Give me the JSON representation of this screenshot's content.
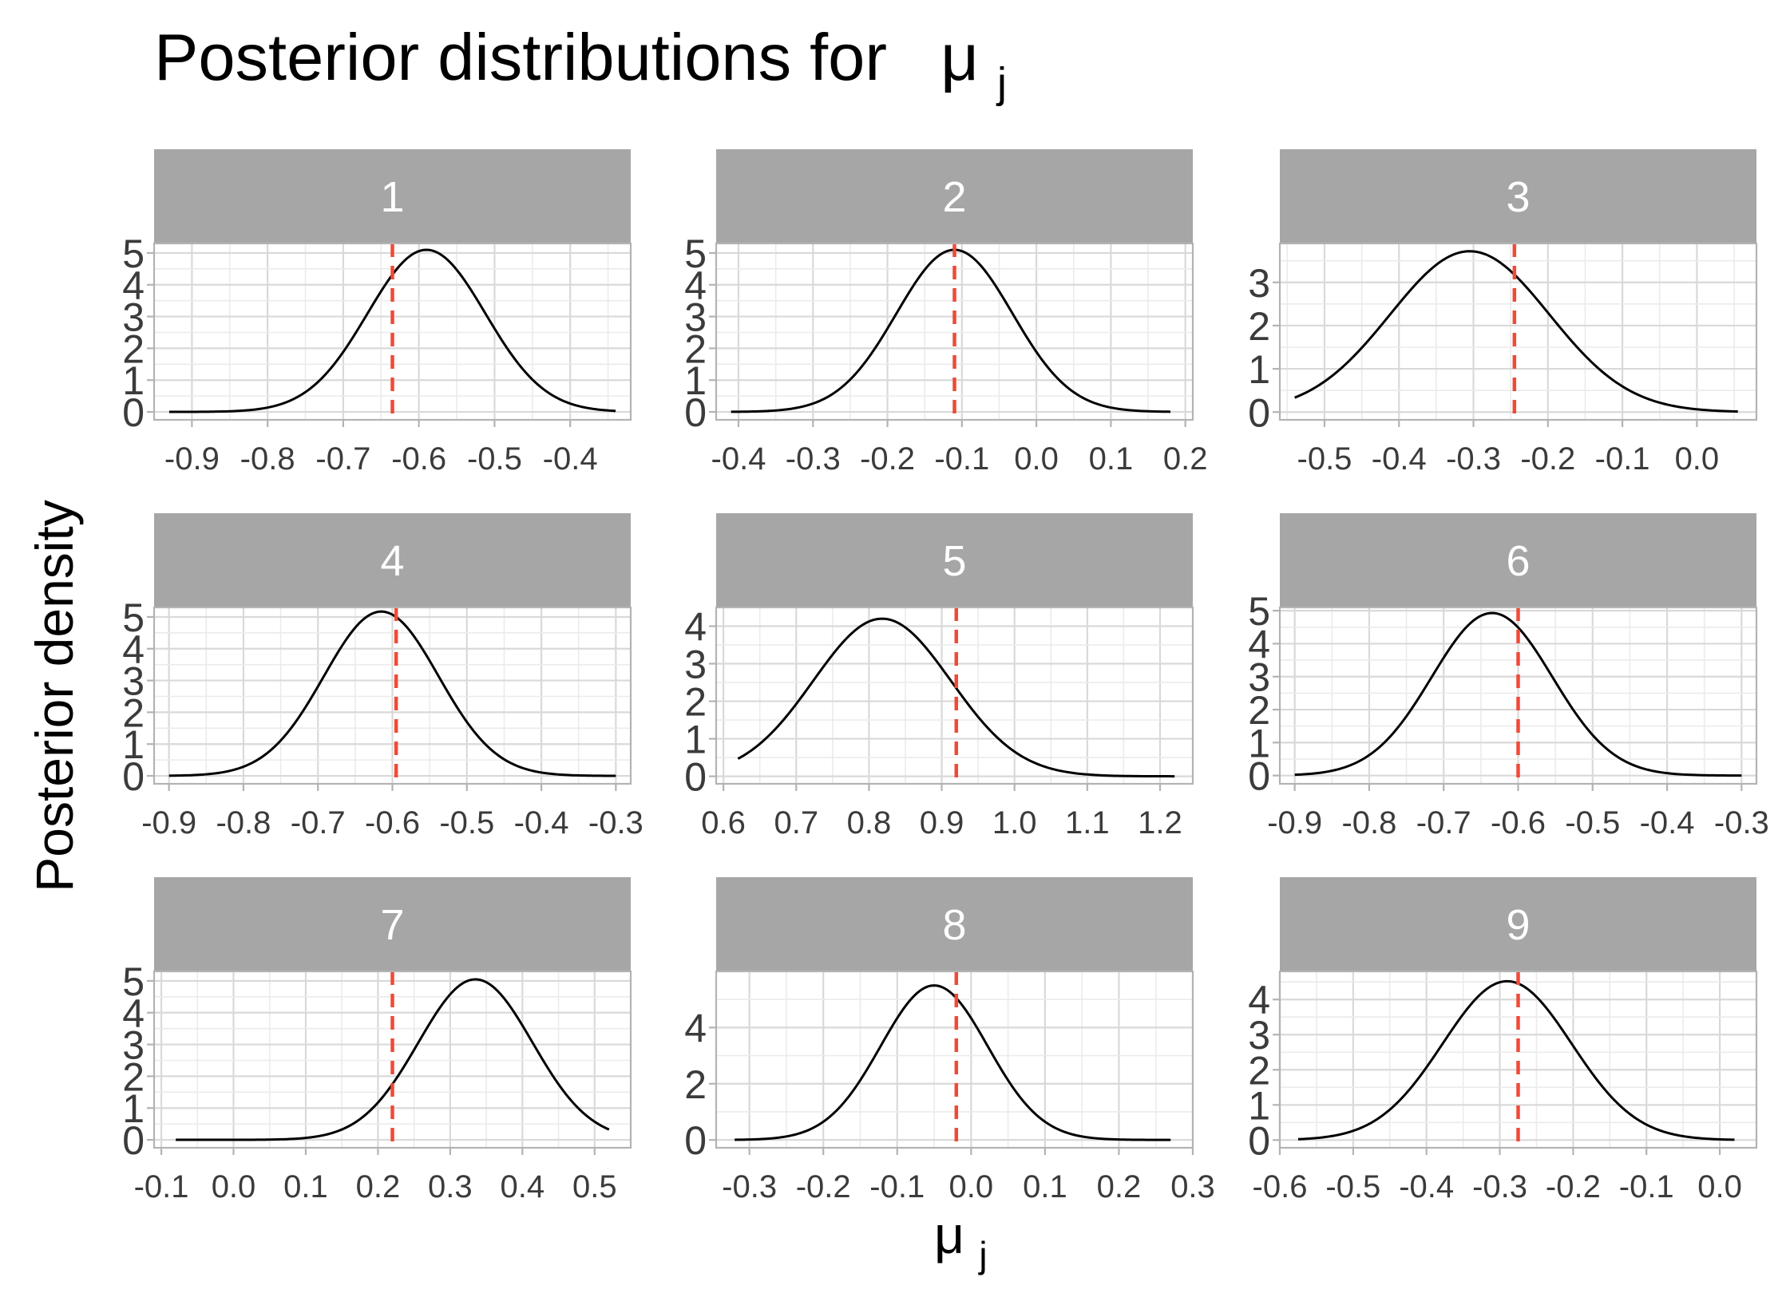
{
  "title": "Posterior distributions for",
  "title_symbol": "μ",
  "title_subscript": "j",
  "xlabel_symbol": "μ",
  "xlabel_subscript": "j",
  "ylabel": "Posterior density",
  "colors": {
    "strip": "#a6a6a6",
    "grid_major": "#d9d9d9",
    "grid_minor": "#ebebeb",
    "panel_border": "#b3b3b3",
    "curve": "#000000",
    "reference_line": "#f04a36",
    "tick_text": "#3b3b3b"
  },
  "chart_data": [
    {
      "type": "line",
      "panel": "1",
      "x_range": [
        -0.95,
        -0.32
      ],
      "x_ticks": [
        "-0.9",
        "-0.8",
        "-0.7",
        "-0.6",
        "-0.5",
        "-0.4"
      ],
      "x_tick_values": [
        -0.9,
        -0.8,
        -0.7,
        -0.6,
        -0.5,
        -0.4
      ],
      "y_range": [
        -0.25,
        5.3
      ],
      "y_ticks": [
        0,
        1,
        2,
        3,
        4,
        5
      ],
      "density": {
        "mean": -0.59,
        "sd": 0.078,
        "x_from": -0.93,
        "x_to": -0.34,
        "peak": 5.1
      },
      "reference_x": -0.635
    },
    {
      "type": "line",
      "panel": "2",
      "x_range": [
        -0.43,
        0.21
      ],
      "x_ticks": [
        "-0.4",
        "-0.3",
        "-0.2",
        "-0.1",
        "0.0",
        "0.1",
        "0.2"
      ],
      "x_tick_values": [
        -0.4,
        -0.3,
        -0.2,
        -0.1,
        0.0,
        0.1,
        0.2
      ],
      "y_range": [
        -0.25,
        5.3
      ],
      "y_ticks": [
        0,
        1,
        2,
        3,
        4,
        5
      ],
      "density": {
        "mean": -0.11,
        "sd": 0.078,
        "x_from": -0.41,
        "x_to": 0.18,
        "peak": 5.1
      },
      "reference_x": -0.11
    },
    {
      "type": "line",
      "panel": "3",
      "x_range": [
        -0.56,
        0.08
      ],
      "x_ticks": [
        "-0.5",
        "-0.4",
        "-0.3",
        "-0.2",
        "-0.1",
        "0.0"
      ],
      "x_tick_values": [
        -0.5,
        -0.4,
        -0.3,
        -0.2,
        -0.1,
        0.0
      ],
      "y_range": [
        -0.18,
        3.9
      ],
      "y_ticks": [
        0,
        1,
        2,
        3
      ],
      "density": {
        "mean": -0.305,
        "sd": 0.107,
        "x_from": -0.54,
        "x_to": 0.055,
        "peak": 3.72
      },
      "reference_x": -0.245
    },
    {
      "type": "line",
      "panel": "4",
      "x_range": [
        -0.92,
        -0.28
      ],
      "x_ticks": [
        "-0.9",
        "-0.8",
        "-0.7",
        "-0.6",
        "-0.5",
        "-0.4",
        "-0.3"
      ],
      "x_tick_values": [
        -0.9,
        -0.8,
        -0.7,
        -0.6,
        -0.5,
        -0.4,
        -0.3
      ],
      "y_range": [
        -0.25,
        5.3
      ],
      "y_ticks": [
        0,
        1,
        2,
        3,
        4,
        5
      ],
      "density": {
        "mean": -0.615,
        "sd": 0.077,
        "x_from": -0.9,
        "x_to": -0.3,
        "peak": 5.17
      },
      "reference_x": -0.595
    },
    {
      "type": "line",
      "panel": "5",
      "x_range": [
        0.59,
        1.245
      ],
      "x_ticks": [
        "0.6",
        "0.7",
        "0.8",
        "0.9",
        "1.0",
        "1.1",
        "1.2"
      ],
      "x_tick_values": [
        0.6,
        0.7,
        0.8,
        0.9,
        1.0,
        1.1,
        1.2
      ],
      "y_range": [
        -0.2,
        4.5
      ],
      "y_ticks": [
        0,
        1,
        2,
        3,
        4
      ],
      "density": {
        "mean": 0.818,
        "sd": 0.0945,
        "x_from": 0.62,
        "x_to": 1.22,
        "peak": 4.2
      },
      "reference_x": 0.92
    },
    {
      "type": "line",
      "panel": "6",
      "x_range": [
        -0.92,
        -0.28
      ],
      "x_ticks": [
        "-0.9",
        "-0.8",
        "-0.7",
        "-0.6",
        "-0.5",
        "-0.4",
        "-0.3"
      ],
      "x_tick_values": [
        -0.9,
        -0.8,
        -0.7,
        -0.6,
        -0.5,
        -0.4,
        -0.3
      ],
      "y_range": [
        -0.25,
        5.1
      ],
      "y_ticks": [
        0,
        1,
        2,
        3,
        4,
        5
      ],
      "density": {
        "mean": -0.635,
        "sd": 0.081,
        "x_from": -0.9,
        "x_to": -0.3,
        "peak": 4.93
      },
      "reference_x": -0.6
    },
    {
      "type": "line",
      "panel": "7",
      "x_range": [
        -0.11,
        0.55
      ],
      "x_ticks": [
        "-0.1",
        "0.0",
        "0.1",
        "0.2",
        "0.3",
        "0.4",
        "0.5"
      ],
      "x_tick_values": [
        -0.1,
        0.0,
        0.1,
        0.2,
        0.3,
        0.4,
        0.5
      ],
      "y_range": [
        -0.25,
        5.3
      ],
      "y_ticks": [
        0,
        1,
        2,
        3,
        4,
        5
      ],
      "density": {
        "mean": 0.335,
        "sd": 0.079,
        "x_from": -0.08,
        "x_to": 0.52,
        "peak": 5.05
      },
      "reference_x": 0.22
    },
    {
      "type": "line",
      "panel": "8",
      "x_range": [
        -0.345,
        0.3
      ],
      "x_ticks": [
        "-0.3",
        "-0.2",
        "-0.1",
        "0.0",
        "0.1",
        "0.2",
        "0.3"
      ],
      "x_tick_values": [
        -0.3,
        -0.2,
        -0.1,
        0.0,
        0.1,
        0.2,
        0.3
      ],
      "y_range": [
        -0.28,
        6.0
      ],
      "y_ticks": [
        0,
        2,
        4
      ],
      "density": {
        "mean": -0.05,
        "sd": 0.0725,
        "x_from": -0.32,
        "x_to": 0.27,
        "peak": 5.5
      },
      "reference_x": -0.02
    },
    {
      "type": "line",
      "panel": "9",
      "x_range": [
        -0.6,
        0.05
      ],
      "x_ticks": [
        "-0.6",
        "-0.5",
        "-0.4",
        "-0.3",
        "-0.2",
        "-0.1",
        "0.0"
      ],
      "x_tick_values": [
        -0.6,
        -0.5,
        -0.4,
        -0.3,
        -0.2,
        -0.1,
        0.0
      ],
      "y_range": [
        -0.22,
        4.8
      ],
      "y_ticks": [
        0,
        1,
        2,
        3,
        4
      ],
      "density": {
        "mean": -0.29,
        "sd": 0.088,
        "x_from": -0.575,
        "x_to": 0.02,
        "peak": 4.52
      },
      "reference_x": -0.275
    }
  ]
}
